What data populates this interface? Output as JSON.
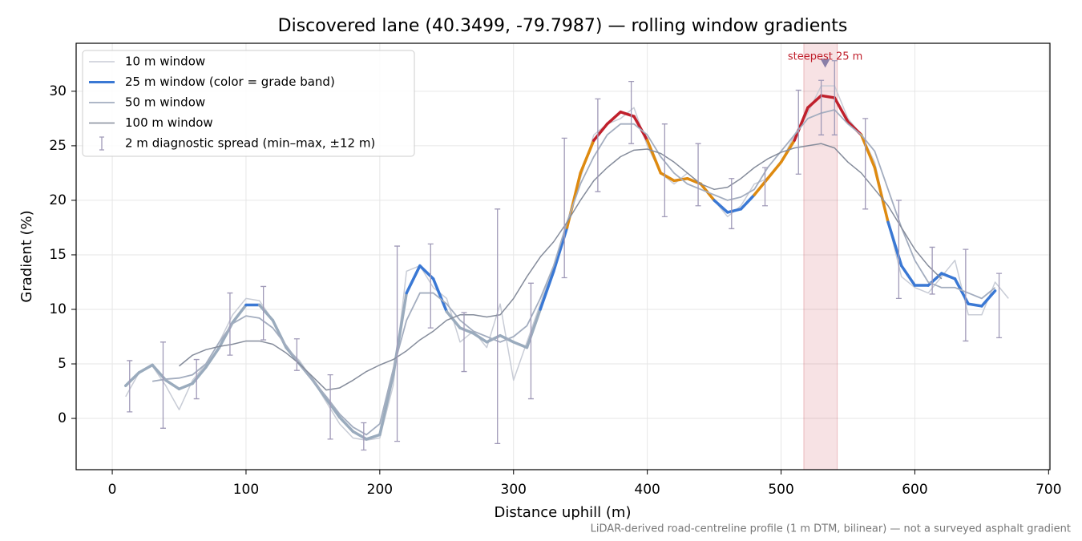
{
  "chart_data": {
    "type": "line",
    "title": "Discovered lane (40.3499, -79.7987) — rolling window gradients",
    "xlabel": "Distance uphill (m)",
    "ylabel": "Gradient (%)",
    "footnote": "LiDAR-derived road-centreline profile (1 m DTM, bilinear) — not a surveyed asphalt gradient",
    "xlim": [
      -27,
      701
    ],
    "ylim": [
      -4.7,
      34.4
    ],
    "xticks": [
      0,
      100,
      200,
      300,
      400,
      500,
      600,
      700
    ],
    "yticks": [
      0,
      5,
      10,
      15,
      20,
      25,
      30
    ],
    "grid": true,
    "legend": "upper left",
    "x": [
      10,
      20,
      30,
      40,
      50,
      60,
      70,
      80,
      90,
      100,
      110,
      120,
      130,
      140,
      150,
      160,
      170,
      180,
      190,
      200,
      210,
      220,
      230,
      240,
      250,
      260,
      270,
      280,
      290,
      300,
      310,
      320,
      330,
      340,
      350,
      360,
      370,
      380,
      390,
      400,
      410,
      420,
      430,
      440,
      450,
      460,
      470,
      480,
      490,
      500,
      510,
      520,
      530,
      540,
      550,
      560,
      570,
      580,
      590,
      600,
      610,
      620,
      630,
      640,
      650,
      660,
      670
    ],
    "series": [
      {
        "name": "10 m window",
        "color": "#c8ccd6",
        "width": 1.5,
        "values": [
          2.0,
          4.2,
          4.8,
          3.0,
          0.8,
          3.5,
          5.0,
          7.0,
          9.5,
          11.0,
          10.8,
          9.0,
          6.5,
          5.3,
          3.5,
          1.5,
          -0.5,
          -1.8,
          -2.0,
          -1.8,
          3.0,
          13.5,
          14.0,
          12.0,
          11.0,
          7.0,
          8.0,
          6.5,
          10.5,
          3.5,
          7.0,
          10.5,
          14.0,
          17.5,
          22.0,
          26.0,
          27.0,
          27.5,
          28.5,
          25.0,
          22.5,
          21.5,
          22.5,
          21.5,
          20.0,
          18.5,
          19.5,
          21.5,
          22.0,
          23.5,
          26.0,
          28.0,
          30.5,
          30.5,
          27.5,
          26.0,
          23.5,
          18.0,
          13.0,
          12.0,
          11.5,
          13.0,
          14.5,
          9.5,
          9.5,
          12.5,
          11.0
        ]
      },
      {
        "name": "25 m window (color = grade band)",
        "color": "#3a78d4",
        "width": 3.5,
        "band_thresholds": [
          10,
          20,
          25
        ],
        "band_colors": [
          "#9aabbd",
          "#3a78d4",
          "#de8a10",
          "#c0202c"
        ],
        "values": [
          3.0,
          4.2,
          4.9,
          3.5,
          2.7,
          3.2,
          4.7,
          6.5,
          8.8,
          10.4,
          10.4,
          9.0,
          6.5,
          5.0,
          3.5,
          1.8,
          0.1,
          -1.2,
          -1.9,
          -1.5,
          4.0,
          11.5,
          14.0,
          12.8,
          9.8,
          8.3,
          7.8,
          7.0,
          7.6,
          7.0,
          6.5,
          10.0,
          13.5,
          17.5,
          22.5,
          25.5,
          27.0,
          28.1,
          27.7,
          25.5,
          22.5,
          21.8,
          22.0,
          21.5,
          20.0,
          18.9,
          19.2,
          20.5,
          22.0,
          23.5,
          25.5,
          28.5,
          29.6,
          29.4,
          27.2,
          26.0,
          23.0,
          18.0,
          14.0,
          12.2,
          12.2,
          13.3,
          12.8,
          10.5,
          10.3,
          11.7,
          null
        ]
      },
      {
        "name": "50 m window",
        "color": "#a3adbf",
        "width": 1.8,
        "values": [
          null,
          null,
          3.4,
          3.6,
          3.7,
          4.0,
          5.0,
          7.0,
          8.7,
          9.4,
          9.2,
          8.3,
          6.7,
          5.0,
          3.5,
          2.0,
          0.4,
          -0.8,
          -1.5,
          -0.5,
          4.5,
          9.0,
          11.5,
          11.5,
          10.5,
          9.0,
          8.0,
          7.5,
          7.0,
          7.5,
          8.5,
          11.0,
          14.0,
          18.0,
          21.5,
          24.0,
          26.0,
          27.0,
          27.0,
          26.0,
          24.0,
          22.5,
          21.5,
          21.0,
          20.5,
          20.0,
          20.3,
          21.0,
          23.0,
          24.5,
          26.0,
          27.5,
          28.0,
          28.3,
          27.0,
          26.0,
          24.5,
          21.0,
          17.5,
          14.5,
          12.5,
          12.0,
          12.0,
          11.5,
          11.0,
          12.0,
          null
        ]
      },
      {
        "name": "100 m window",
        "color": "#858c9b",
        "width": 1.5,
        "values": [
          null,
          null,
          null,
          null,
          4.8,
          5.8,
          6.3,
          6.6,
          6.8,
          7.1,
          7.1,
          6.8,
          6.0,
          5.0,
          3.8,
          2.6,
          2.8,
          3.5,
          4.3,
          4.9,
          5.4,
          6.2,
          7.2,
          8.0,
          9.0,
          9.5,
          9.5,
          9.3,
          9.5,
          11.0,
          13.0,
          14.8,
          16.2,
          18.0,
          20.0,
          21.8,
          23.0,
          24.0,
          24.6,
          24.7,
          24.3,
          23.5,
          22.5,
          21.5,
          21.0,
          21.2,
          22.0,
          23.0,
          23.8,
          24.4,
          24.8,
          25.0,
          25.2,
          24.8,
          23.5,
          22.5,
          21.0,
          19.5,
          17.5,
          15.5,
          14.0,
          12.8,
          null,
          null,
          null,
          null,
          null
        ]
      }
    ],
    "spread": {
      "name": "2 m diagnostic spread (min–max, ±12 m)",
      "color": "#a09ab8",
      "x": [
        13,
        38,
        63,
        88,
        113,
        138,
        163,
        188,
        213,
        238,
        263,
        288,
        313,
        338,
        363,
        388,
        413,
        438,
        463,
        488,
        513,
        530,
        540,
        563,
        588,
        613,
        638,
        663
      ],
      "low": [
        0.6,
        -0.9,
        1.8,
        5.8,
        7.2,
        4.4,
        -1.9,
        -2.9,
        -2.1,
        8.3,
        4.3,
        -2.3,
        1.8,
        12.9,
        20.8,
        25.2,
        18.5,
        19.5,
        17.4,
        19.5,
        22.4,
        26.0,
        26.0,
        19.2,
        11.0,
        11.4,
        7.1,
        7.4
      ],
      "high": [
        5.3,
        7.0,
        5.4,
        11.5,
        12.1,
        7.3,
        4.0,
        -0.4,
        15.8,
        16.0,
        9.7,
        19.2,
        12.4,
        25.7,
        29.3,
        30.9,
        27.0,
        25.2,
        22.0,
        23.0,
        30.1,
        31.0,
        32.8,
        27.5,
        20.0,
        15.7,
        15.5,
        13.3
      ]
    },
    "highlight": {
      "x0": 517,
      "x1": 542,
      "color": "#c0202c",
      "label": "steepest 25 m",
      "marker_x": 533,
      "marker_y": 32.6,
      "marker_color": "#8a7fa8"
    }
  }
}
